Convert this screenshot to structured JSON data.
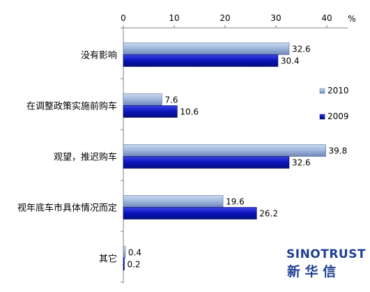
{
  "chart_data": {
    "type": "bar",
    "orientation": "horizontal",
    "categories": [
      "没有影响",
      "在调整政策实施前购车",
      "观望，推迟购车",
      "视年底车市具体情况而定",
      "其它"
    ],
    "series": [
      {
        "name": "2010",
        "values": [
          32.6,
          7.6,
          39.8,
          19.6,
          0.4
        ],
        "color": "#9fb7dc"
      },
      {
        "name": "2009",
        "values": [
          30.4,
          10.6,
          32.6,
          26.2,
          0.2
        ],
        "color": "#0a14b8"
      }
    ],
    "xlim": [
      0,
      40
    ],
    "xticks": [
      0,
      10,
      20,
      30,
      40
    ],
    "tick_labels": [
      "0",
      "10",
      "20",
      "30",
      "40"
    ],
    "unit_label": "%",
    "axis_position": "top",
    "grid": false,
    "legend_position": "right"
  },
  "logo": {
    "name_en": "SINOTRUST",
    "name_cn": "新 华 信"
  }
}
